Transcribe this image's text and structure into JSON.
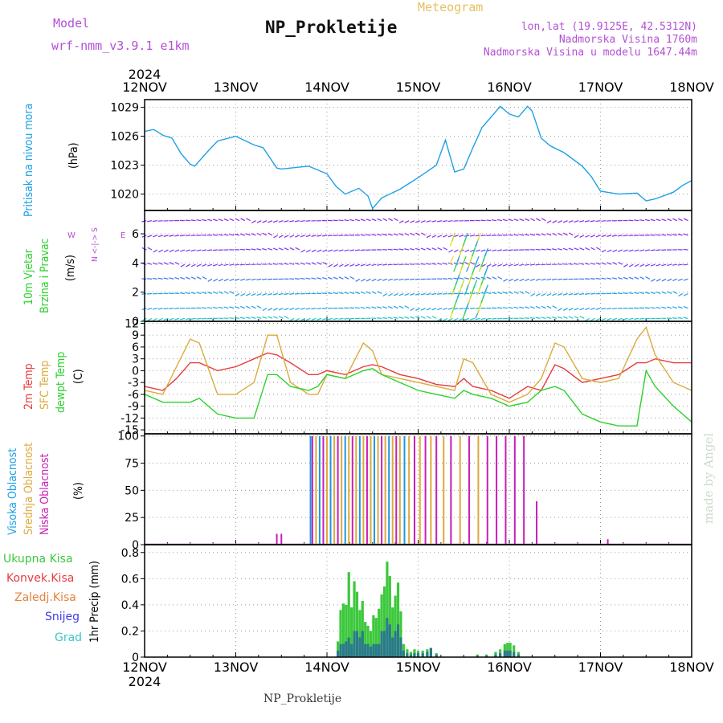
{
  "header": {
    "model_label": "Model",
    "model_name": "wrf-nmm_v3.9.1  e1km",
    "title": "NP_Prokletije",
    "subtitle": "Meteogram",
    "coords": "lon,lat (19.9125E, 42.5312N)",
    "elevation": "Nadmorska Visina 1760m",
    "model_elevation": "Nadmorska Visina u modelu 1647.44m",
    "footer_station": "NP_Prokletije",
    "credit": "made by Angel"
  },
  "colors": {
    "pressure": "#1ea0e6",
    "temp2m": "#e63c3c",
    "sfc": "#dcaa3c",
    "dew": "#2cd22c",
    "high_cloud": "#1e96e6",
    "mid_cloud": "#dcaa3c",
    "low_cloud": "#c81eb4",
    "total_precip": "#3cc83c",
    "conv_precip": "#e63c3c",
    "frozen_precip": "#e6823c",
    "snow": "#3c3ce6",
    "graupel": "#3cc8c8"
  },
  "chart_data": [
    {
      "type": "line",
      "panel": "pressure",
      "label": "Pritisak na nivou mora",
      "unit": "(hPa)",
      "x_ticks": [
        "12NOV",
        "13NOV",
        "14NOV",
        "15NOV",
        "16NOV",
        "17NOV",
        "18NOV"
      ],
      "year_top": "2024",
      "year_bottom": "2024",
      "y_ticks": [
        1020,
        1023,
        1026,
        1029
      ],
      "ylim": [
        1018.3,
        1029.8
      ],
      "x_days": [
        0,
        0.1,
        0.2,
        0.3,
        0.4,
        0.5,
        0.55,
        0.7,
        0.8,
        1.0,
        1.2,
        1.3,
        1.45,
        1.5,
        1.6,
        1.8,
        2.0,
        2.1,
        2.2,
        2.35,
        2.45,
        2.5,
        2.6,
        2.8,
        3.0,
        3.2,
        3.3,
        3.4,
        3.5,
        3.6,
        3.7,
        3.9,
        4.0,
        4.1,
        4.2,
        4.25,
        4.35,
        4.45,
        4.6,
        4.8,
        4.9,
        5.0,
        5.2,
        5.4,
        5.5,
        5.6,
        5.8,
        5.9,
        6.0
      ],
      "values": [
        1026.5,
        1026.7,
        1026.1,
        1025.8,
        1024.2,
        1023.1,
        1022.9,
        1024.5,
        1025.5,
        1026.0,
        1025.1,
        1024.8,
        1022.7,
        1022.6,
        1022.7,
        1022.9,
        1022.1,
        1020.8,
        1020.0,
        1020.6,
        1019.8,
        1018.5,
        1019.6,
        1020.5,
        1021.7,
        1023.0,
        1025.6,
        1022.3,
        1022.6,
        1024.8,
        1026.9,
        1029.1,
        1028.3,
        1028.0,
        1029.1,
        1028.6,
        1025.8,
        1025.0,
        1024.3,
        1022.9,
        1021.8,
        1020.3,
        1020.0,
        1020.1,
        1019.3,
        1019.5,
        1020.2,
        1020.9,
        1021.4
      ]
    },
    {
      "type": "scatter",
      "panel": "wind",
      "label_speed": "10m Vjetar",
      "label_dir": "Brzina i Pravac",
      "unit": "(m/s)",
      "compass": "N <-|-> S",
      "compass_w": "W",
      "compass_e": "E",
      "y_ticks": [
        0,
        2,
        4,
        6
      ],
      "ylim": [
        0,
        7.6
      ],
      "arrow_rows": [
        0.2,
        0.9,
        1.9,
        2.9,
        3.9,
        4.9,
        5.9,
        6.9
      ]
    },
    {
      "type": "line",
      "panel": "temperature",
      "label_t2": "2m Temp",
      "label_sfc": "SFC Temp",
      "label_dew": "dewpt Temp",
      "unit": "(C)",
      "y_ticks": [
        -15,
        -12,
        -9,
        -6,
        -3,
        0,
        3,
        6,
        9,
        12
      ],
      "ylim": [
        -16,
        12.5
      ],
      "x_days": [
        0,
        0.2,
        0.35,
        0.5,
        0.6,
        0.8,
        1.0,
        1.2,
        1.35,
        1.45,
        1.6,
        1.8,
        1.9,
        2.0,
        2.2,
        2.4,
        2.5,
        2.6,
        2.8,
        3.0,
        3.2,
        3.4,
        3.5,
        3.6,
        3.8,
        4.0,
        4.2,
        4.35,
        4.5,
        4.6,
        4.8,
        5.0,
        5.2,
        5.4,
        5.5,
        5.6,
        5.8,
        6.0
      ],
      "series": [
        {
          "name": "2m Temp",
          "values": [
            -4,
            -5,
            -2,
            2,
            2,
            0,
            1,
            3,
            4.5,
            4,
            2,
            -1,
            -1,
            0,
            -1,
            1,
            1.5,
            1,
            -1,
            -2,
            -3.5,
            -4,
            -2,
            -4,
            -5,
            -7,
            -4,
            -5,
            1.5,
            0.5,
            -3,
            -2,
            -1,
            2,
            2,
            3,
            2,
            2
          ]
        },
        {
          "name": "SFC Temp",
          "values": [
            -5,
            -6,
            1,
            8,
            7,
            -6,
            -6,
            -3,
            9,
            9,
            -3,
            -6,
            -6,
            -1,
            -2,
            7,
            5,
            -1,
            -2,
            -3,
            -4,
            -5,
            3,
            2,
            -6,
            -8,
            -6,
            -2,
            7,
            6,
            -2,
            -3,
            -2,
            8,
            11,
            4,
            -3,
            -5
          ]
        },
        {
          "name": "dewpt Temp",
          "values": [
            -6,
            -8,
            -8,
            -8,
            -7,
            -11,
            -12,
            -12,
            -1,
            -1,
            -4,
            -5,
            -4,
            -1,
            -2,
            0,
            0.5,
            -1,
            -3,
            -5,
            -6,
            -7,
            -5,
            -6,
            -7,
            -9,
            -8,
            -5,
            -4,
            -5,
            -11,
            -13,
            -14,
            -14,
            0,
            -4,
            -9,
            -13
          ]
        }
      ]
    },
    {
      "type": "bar",
      "panel": "cloud",
      "label_high": "Visoka Oblacnost",
      "label_mid": "Srednja Oblacnost",
      "label_low": "Niska Oblacnost",
      "unit": "(%)",
      "y_ticks": [
        0,
        25,
        50,
        75,
        100
      ],
      "ylim": [
        0,
        102
      ],
      "bars": [
        {
          "x": 1.45,
          "series": "low",
          "value": 10
        },
        {
          "x": 1.5,
          "series": "low",
          "value": 10
        },
        {
          "x": 1.82,
          "series": "high",
          "value": 100
        },
        {
          "x": 1.84,
          "series": "low",
          "value": 100
        },
        {
          "x": 1.88,
          "series": "mid",
          "value": 100
        },
        {
          "x": 1.92,
          "series": "high",
          "value": 100
        },
        {
          "x": 1.96,
          "series": "low",
          "value": 100
        },
        {
          "x": 2.0,
          "series": "mid",
          "value": 100
        },
        {
          "x": 2.04,
          "series": "high",
          "value": 100
        },
        {
          "x": 2.08,
          "series": "mid",
          "value": 100
        },
        {
          "x": 2.12,
          "series": "low",
          "value": 100
        },
        {
          "x": 2.16,
          "series": "mid",
          "value": 100
        },
        {
          "x": 2.2,
          "series": "high",
          "value": 100
        },
        {
          "x": 2.24,
          "series": "mid",
          "value": 100
        },
        {
          "x": 2.28,
          "series": "low",
          "value": 100
        },
        {
          "x": 2.32,
          "series": "mid",
          "value": 100
        },
        {
          "x": 2.36,
          "series": "high",
          "value": 100
        },
        {
          "x": 2.4,
          "series": "mid",
          "value": 100
        },
        {
          "x": 2.44,
          "series": "low",
          "value": 100
        },
        {
          "x": 2.48,
          "series": "mid",
          "value": 100
        },
        {
          "x": 2.52,
          "series": "high",
          "value": 100
        },
        {
          "x": 2.56,
          "series": "mid",
          "value": 100
        },
        {
          "x": 2.6,
          "series": "low",
          "value": 100
        },
        {
          "x": 2.64,
          "series": "mid",
          "value": 100
        },
        {
          "x": 2.68,
          "series": "high",
          "value": 100
        },
        {
          "x": 2.72,
          "series": "mid",
          "value": 100
        },
        {
          "x": 2.76,
          "series": "low",
          "value": 100
        },
        {
          "x": 2.8,
          "series": "mid",
          "value": 100
        },
        {
          "x": 2.85,
          "series": "high",
          "value": 100
        },
        {
          "x": 2.9,
          "series": "mid",
          "value": 100
        },
        {
          "x": 2.96,
          "series": "low",
          "value": 100
        },
        {
          "x": 3.02,
          "series": "mid",
          "value": 100
        },
        {
          "x": 3.08,
          "series": "low",
          "value": 100
        },
        {
          "x": 3.14,
          "series": "mid",
          "value": 100
        },
        {
          "x": 3.2,
          "series": "low",
          "value": 100
        },
        {
          "x": 3.28,
          "series": "mid",
          "value": 100
        },
        {
          "x": 3.36,
          "series": "low",
          "value": 100
        },
        {
          "x": 3.46,
          "series": "mid",
          "value": 100
        },
        {
          "x": 3.56,
          "series": "low",
          "value": 100
        },
        {
          "x": 3.66,
          "series": "mid",
          "value": 100
        },
        {
          "x": 3.76,
          "series": "low",
          "value": 100
        },
        {
          "x": 3.86,
          "series": "low",
          "value": 100
        },
        {
          "x": 3.96,
          "series": "low",
          "value": 100
        },
        {
          "x": 4.06,
          "series": "low",
          "value": 100
        },
        {
          "x": 4.16,
          "series": "low",
          "value": 100
        },
        {
          "x": 4.3,
          "series": "low",
          "value": 40
        },
        {
          "x": 5.08,
          "series": "low",
          "value": 5
        }
      ]
    },
    {
      "type": "bar",
      "panel": "precipitation",
      "label_total": "Ukupna Kisa",
      "label_conv": "Konvek.Kisa",
      "label_frozen": "Zaledj.Kisa",
      "label_snow": "Snijeg",
      "label_graupel": "Grad",
      "unit": "1hr Precip (mm)",
      "y_ticks": [
        0,
        0.2,
        0.4,
        0.6,
        0.8
      ],
      "ylim": [
        0,
        0.86
      ],
      "bars": [
        {
          "x": 2.12,
          "total": 0.12,
          "snow": 0.05
        },
        {
          "x": 2.15,
          "total": 0.36,
          "snow": 0.1
        },
        {
          "x": 2.18,
          "total": 0.41,
          "snow": 0.1
        },
        {
          "x": 2.21,
          "total": 0.4,
          "snow": 0.12
        },
        {
          "x": 2.24,
          "total": 0.65,
          "snow": 0.15
        },
        {
          "x": 2.27,
          "total": 0.38,
          "snow": 0.1
        },
        {
          "x": 2.3,
          "total": 0.58,
          "snow": 0.2
        },
        {
          "x": 2.33,
          "total": 0.5,
          "snow": 0.2
        },
        {
          "x": 2.36,
          "total": 0.36,
          "snow": 0.15
        },
        {
          "x": 2.39,
          "total": 0.43,
          "snow": 0.2
        },
        {
          "x": 2.42,
          "total": 0.27,
          "snow": 0.1
        },
        {
          "x": 2.45,
          "total": 0.24,
          "snow": 0.1
        },
        {
          "x": 2.48,
          "total": 0.2,
          "snow": 0.08
        },
        {
          "x": 2.51,
          "total": 0.32,
          "snow": 0.1
        },
        {
          "x": 2.54,
          "total": 0.3,
          "snow": 0.1
        },
        {
          "x": 2.57,
          "total": 0.37,
          "snow": 0.1
        },
        {
          "x": 2.6,
          "total": 0.48,
          "snow": 0.2
        },
        {
          "x": 2.63,
          "total": 0.54,
          "snow": 0.2
        },
        {
          "x": 2.66,
          "total": 0.73,
          "snow": 0.3
        },
        {
          "x": 2.69,
          "total": 0.62,
          "snow": 0.25
        },
        {
          "x": 2.72,
          "total": 0.38,
          "snow": 0.15
        },
        {
          "x": 2.75,
          "total": 0.47,
          "snow": 0.2
        },
        {
          "x": 2.78,
          "total": 0.57,
          "snow": 0.25
        },
        {
          "x": 2.81,
          "total": 0.35,
          "snow": 0.15
        },
        {
          "x": 2.84,
          "total": 0.1,
          "snow": 0.05
        },
        {
          "x": 2.88,
          "total": 0.06,
          "snow": 0.03
        },
        {
          "x": 2.92,
          "total": 0.04,
          "snow": 0.02
        },
        {
          "x": 2.96,
          "total": 0.06,
          "snow": 0.03
        },
        {
          "x": 3.0,
          "total": 0.05,
          "snow": 0.03
        },
        {
          "x": 3.05,
          "total": 0.05,
          "snow": 0.03
        },
        {
          "x": 3.1,
          "total": 0.06,
          "snow": 0.04
        },
        {
          "x": 3.14,
          "total": 0.07,
          "snow": 0.07
        },
        {
          "x": 3.2,
          "total": 0.03,
          "snow": 0.02
        },
        {
          "x": 3.65,
          "total": 0.02,
          "snow": 0.01
        },
        {
          "x": 3.75,
          "total": 0.02,
          "snow": 0.01
        },
        {
          "x": 3.85,
          "total": 0.04,
          "snow": 0.02
        },
        {
          "x": 3.9,
          "total": 0.06,
          "snow": 0.03
        },
        {
          "x": 3.95,
          "total": 0.1,
          "snow": 0.05
        },
        {
          "x": 3.98,
          "total": 0.11,
          "snow": 0.05
        },
        {
          "x": 4.01,
          "total": 0.11,
          "snow": 0.05
        },
        {
          "x": 4.05,
          "total": 0.09,
          "snow": 0.04
        },
        {
          "x": 4.1,
          "total": 0.04,
          "snow": 0.02
        }
      ]
    }
  ]
}
